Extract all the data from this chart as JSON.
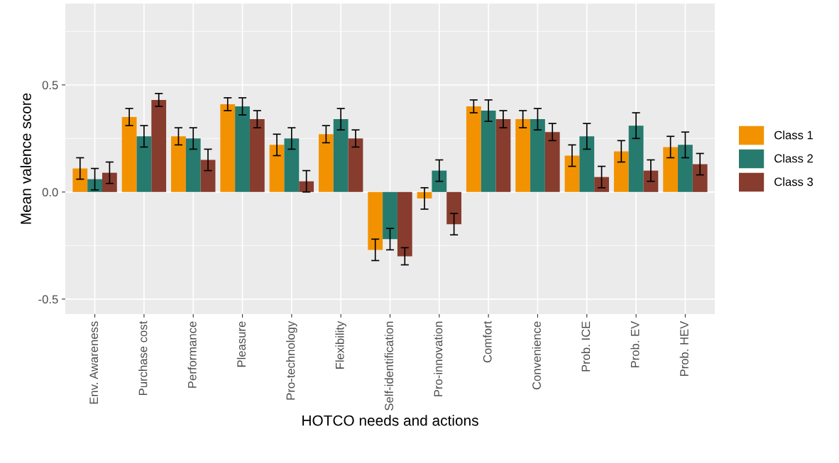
{
  "chart_data": {
    "type": "bar",
    "xlabel": "HOTCO needs and actions",
    "ylabel": "Mean valence score",
    "categories": [
      "Env. Awareness",
      "Purchase cost",
      "Performance",
      "Pleasure",
      "Pro-technology",
      "Flexibility",
      "Self-identification",
      "Pro-innovation",
      "Comfort",
      "Convenience",
      "Prob. ICE",
      "Prob. EV",
      "Prob. HEV"
    ],
    "series": [
      {
        "name": "Class 1",
        "color": "#f39200",
        "values": [
          0.11,
          0.35,
          0.26,
          0.41,
          0.22,
          0.27,
          -0.27,
          -0.03,
          0.4,
          0.34,
          0.17,
          0.19,
          0.21
        ],
        "errors": [
          0.05,
          0.04,
          0.04,
          0.03,
          0.05,
          0.04,
          0.05,
          0.05,
          0.03,
          0.04,
          0.05,
          0.05,
          0.05
        ]
      },
      {
        "name": "Class 2",
        "color": "#267a6e",
        "values": [
          0.06,
          0.26,
          0.25,
          0.4,
          0.25,
          0.34,
          -0.22,
          0.1,
          0.38,
          0.34,
          0.26,
          0.31,
          0.22
        ],
        "errors": [
          0.05,
          0.05,
          0.05,
          0.04,
          0.05,
          0.05,
          0.05,
          0.05,
          0.05,
          0.05,
          0.06,
          0.06,
          0.06
        ]
      },
      {
        "name": "Class 3",
        "color": "#873c2e",
        "values": [
          0.09,
          0.43,
          0.15,
          0.34,
          0.05,
          0.25,
          -0.3,
          -0.15,
          0.34,
          0.28,
          0.07,
          0.1,
          0.13
        ],
        "errors": [
          0.05,
          0.03,
          0.05,
          0.04,
          0.05,
          0.04,
          0.04,
          0.05,
          0.04,
          0.04,
          0.05,
          0.05,
          0.05
        ]
      }
    ],
    "ylim": [
      -0.57,
      0.88
    ],
    "yticks": [
      {
        "value": -0.5,
        "label": "-0.5"
      },
      {
        "value": -0.25,
        "label": null
      },
      {
        "value": 0,
        "label": "0.0"
      },
      {
        "value": 0.25,
        "label": null
      },
      {
        "value": 0.5,
        "label": "0.5"
      },
      {
        "value": 0.75,
        "label": null
      }
    ],
    "grid": true,
    "legend": "right"
  }
}
